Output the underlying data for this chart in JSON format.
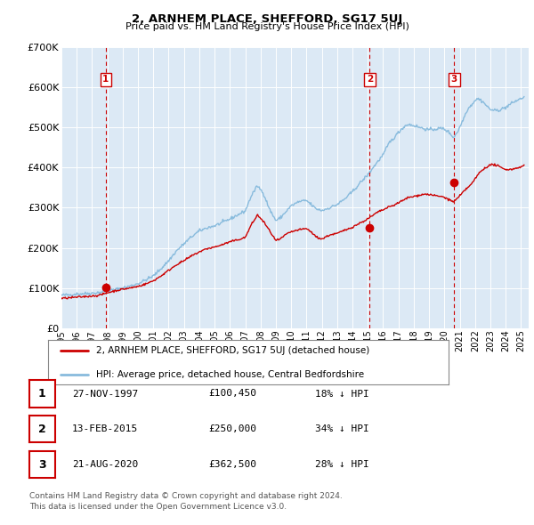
{
  "title": "2, ARNHEM PLACE, SHEFFORD, SG17 5UJ",
  "subtitle": "Price paid vs. HM Land Registry's House Price Index (HPI)",
  "bg_color": "#dce9f5",
  "fig_bg_color": "#ffffff",
  "red_line_color": "#cc0000",
  "blue_line_color": "#88bbdd",
  "grid_color": "#ffffff",
  "sale_points": [
    {
      "date_num": 1997.9,
      "value": 100450,
      "label": "1"
    },
    {
      "date_num": 2015.12,
      "value": 250000,
      "label": "2"
    },
    {
      "date_num": 2020.64,
      "value": 362500,
      "label": "3"
    }
  ],
  "vline_dates": [
    1997.9,
    2015.12,
    2020.64
  ],
  "table_rows": [
    {
      "num": "1",
      "date": "27-NOV-1997",
      "price": "£100,450",
      "hpi": "18% ↓ HPI"
    },
    {
      "num": "2",
      "date": "13-FEB-2015",
      "price": "£250,000",
      "hpi": "34% ↓ HPI"
    },
    {
      "num": "3",
      "date": "21-AUG-2020",
      "price": "£362,500",
      "hpi": "28% ↓ HPI"
    }
  ],
  "legend_entries": [
    "2, ARNHEM PLACE, SHEFFORD, SG17 5UJ (detached house)",
    "HPI: Average price, detached house, Central Bedfordshire"
  ],
  "footer": "Contains HM Land Registry data © Crown copyright and database right 2024.\nThis data is licensed under the Open Government Licence v3.0.",
  "ylim": [
    0,
    700000
  ],
  "xlim_start": 1995.0,
  "xlim_end": 2025.5,
  "yticks": [
    0,
    100000,
    200000,
    300000,
    400000,
    500000,
    600000,
    700000
  ],
  "ytick_labels": [
    "£0",
    "£100K",
    "£200K",
    "£300K",
    "£400K",
    "£500K",
    "£600K",
    "£700K"
  ],
  "xticks": [
    1995,
    1996,
    1997,
    1998,
    1999,
    2000,
    2001,
    2002,
    2003,
    2004,
    2005,
    2006,
    2007,
    2008,
    2009,
    2010,
    2011,
    2012,
    2013,
    2014,
    2015,
    2016,
    2017,
    2018,
    2019,
    2020,
    2021,
    2022,
    2023,
    2024,
    2025
  ],
  "hpi_anchors": [
    [
      1995.0,
      82000
    ],
    [
      1995.5,
      83000
    ],
    [
      1996.0,
      85000
    ],
    [
      1996.5,
      86000
    ],
    [
      1997.0,
      87000
    ],
    [
      1997.5,
      89000
    ],
    [
      1998.0,
      93000
    ],
    [
      1998.5,
      96000
    ],
    [
      1999.0,
      100000
    ],
    [
      1999.5,
      105000
    ],
    [
      2000.0,
      111000
    ],
    [
      2000.5,
      120000
    ],
    [
      2001.0,
      130000
    ],
    [
      2001.5,
      148000
    ],
    [
      2002.0,
      168000
    ],
    [
      2002.5,
      192000
    ],
    [
      2003.0,
      210000
    ],
    [
      2003.5,
      228000
    ],
    [
      2004.0,
      242000
    ],
    [
      2004.5,
      250000
    ],
    [
      2005.0,
      255000
    ],
    [
      2005.5,
      263000
    ],
    [
      2006.0,
      272000
    ],
    [
      2006.5,
      282000
    ],
    [
      2007.0,
      292000
    ],
    [
      2007.4,
      330000
    ],
    [
      2007.8,
      355000
    ],
    [
      2008.2,
      335000
    ],
    [
      2008.6,
      295000
    ],
    [
      2009.0,
      268000
    ],
    [
      2009.3,
      275000
    ],
    [
      2009.6,
      288000
    ],
    [
      2010.0,
      305000
    ],
    [
      2010.5,
      315000
    ],
    [
      2011.0,
      318000
    ],
    [
      2011.3,
      308000
    ],
    [
      2011.6,
      298000
    ],
    [
      2012.0,
      293000
    ],
    [
      2012.5,
      300000
    ],
    [
      2013.0,
      308000
    ],
    [
      2013.5,
      322000
    ],
    [
      2014.0,
      340000
    ],
    [
      2014.5,
      362000
    ],
    [
      2015.0,
      382000
    ],
    [
      2015.5,
      408000
    ],
    [
      2016.0,
      432000
    ],
    [
      2016.4,
      462000
    ],
    [
      2016.8,
      478000
    ],
    [
      2017.0,
      488000
    ],
    [
      2017.3,
      500000
    ],
    [
      2017.6,
      508000
    ],
    [
      2018.0,
      505000
    ],
    [
      2018.4,
      500000
    ],
    [
      2018.8,
      496000
    ],
    [
      2019.0,
      494000
    ],
    [
      2019.4,
      496000
    ],
    [
      2019.8,
      498000
    ],
    [
      2020.0,
      496000
    ],
    [
      2020.3,
      488000
    ],
    [
      2020.6,
      475000
    ],
    [
      2020.9,
      492000
    ],
    [
      2021.2,
      518000
    ],
    [
      2021.5,
      545000
    ],
    [
      2021.8,
      558000
    ],
    [
      2022.0,
      568000
    ],
    [
      2022.2,
      572000
    ],
    [
      2022.5,
      565000
    ],
    [
      2022.8,
      552000
    ],
    [
      2023.0,
      545000
    ],
    [
      2023.3,
      542000
    ],
    [
      2023.6,
      544000
    ],
    [
      2024.0,
      550000
    ],
    [
      2024.3,
      558000
    ],
    [
      2024.6,
      565000
    ],
    [
      2025.0,
      572000
    ],
    [
      2025.2,
      576000
    ]
  ],
  "red_anchors": [
    [
      1995.0,
      74000
    ],
    [
      1995.5,
      75500
    ],
    [
      1996.0,
      77000
    ],
    [
      1996.5,
      78500
    ],
    [
      1997.0,
      80000
    ],
    [
      1997.5,
      82000
    ],
    [
      1998.0,
      88000
    ],
    [
      1998.5,
      93000
    ],
    [
      1999.0,
      97000
    ],
    [
      1999.5,
      100000
    ],
    [
      2000.0,
      104000
    ],
    [
      2000.5,
      110000
    ],
    [
      2001.0,
      118000
    ],
    [
      2001.5,
      130000
    ],
    [
      2002.0,
      144000
    ],
    [
      2002.5,
      158000
    ],
    [
      2003.0,
      168000
    ],
    [
      2003.5,
      180000
    ],
    [
      2004.0,
      190000
    ],
    [
      2004.5,
      198000
    ],
    [
      2005.0,
      202000
    ],
    [
      2005.5,
      208000
    ],
    [
      2006.0,
      215000
    ],
    [
      2006.5,
      220000
    ],
    [
      2007.0,
      226000
    ],
    [
      2007.4,
      258000
    ],
    [
      2007.8,
      282000
    ],
    [
      2008.2,
      265000
    ],
    [
      2008.6,
      242000
    ],
    [
      2009.0,
      218000
    ],
    [
      2009.3,
      222000
    ],
    [
      2009.6,
      232000
    ],
    [
      2010.0,
      240000
    ],
    [
      2010.5,
      245000
    ],
    [
      2011.0,
      248000
    ],
    [
      2011.3,
      240000
    ],
    [
      2011.6,
      228000
    ],
    [
      2012.0,
      222000
    ],
    [
      2012.5,
      232000
    ],
    [
      2013.0,
      236000
    ],
    [
      2013.5,
      244000
    ],
    [
      2014.0,
      252000
    ],
    [
      2014.5,
      262000
    ],
    [
      2015.0,
      272000
    ],
    [
      2015.3,
      280000
    ],
    [
      2015.6,
      288000
    ],
    [
      2016.0,
      295000
    ],
    [
      2016.4,
      302000
    ],
    [
      2016.8,
      308000
    ],
    [
      2017.0,
      313000
    ],
    [
      2017.3,
      318000
    ],
    [
      2017.6,
      325000
    ],
    [
      2018.0,
      328000
    ],
    [
      2018.4,
      332000
    ],
    [
      2018.8,
      334000
    ],
    [
      2019.0,
      333000
    ],
    [
      2019.4,
      330000
    ],
    [
      2019.8,
      328000
    ],
    [
      2020.0,
      326000
    ],
    [
      2020.3,
      320000
    ],
    [
      2020.6,
      315000
    ],
    [
      2020.9,
      325000
    ],
    [
      2021.2,
      338000
    ],
    [
      2021.5,
      350000
    ],
    [
      2021.8,
      360000
    ],
    [
      2022.0,
      372000
    ],
    [
      2022.3,
      388000
    ],
    [
      2022.6,
      398000
    ],
    [
      2022.9,
      405000
    ],
    [
      2023.2,
      408000
    ],
    [
      2023.5,
      404000
    ],
    [
      2023.8,
      398000
    ],
    [
      2024.0,
      396000
    ],
    [
      2024.3,
      395000
    ],
    [
      2024.6,
      398000
    ],
    [
      2025.0,
      402000
    ],
    [
      2025.2,
      405000
    ]
  ]
}
